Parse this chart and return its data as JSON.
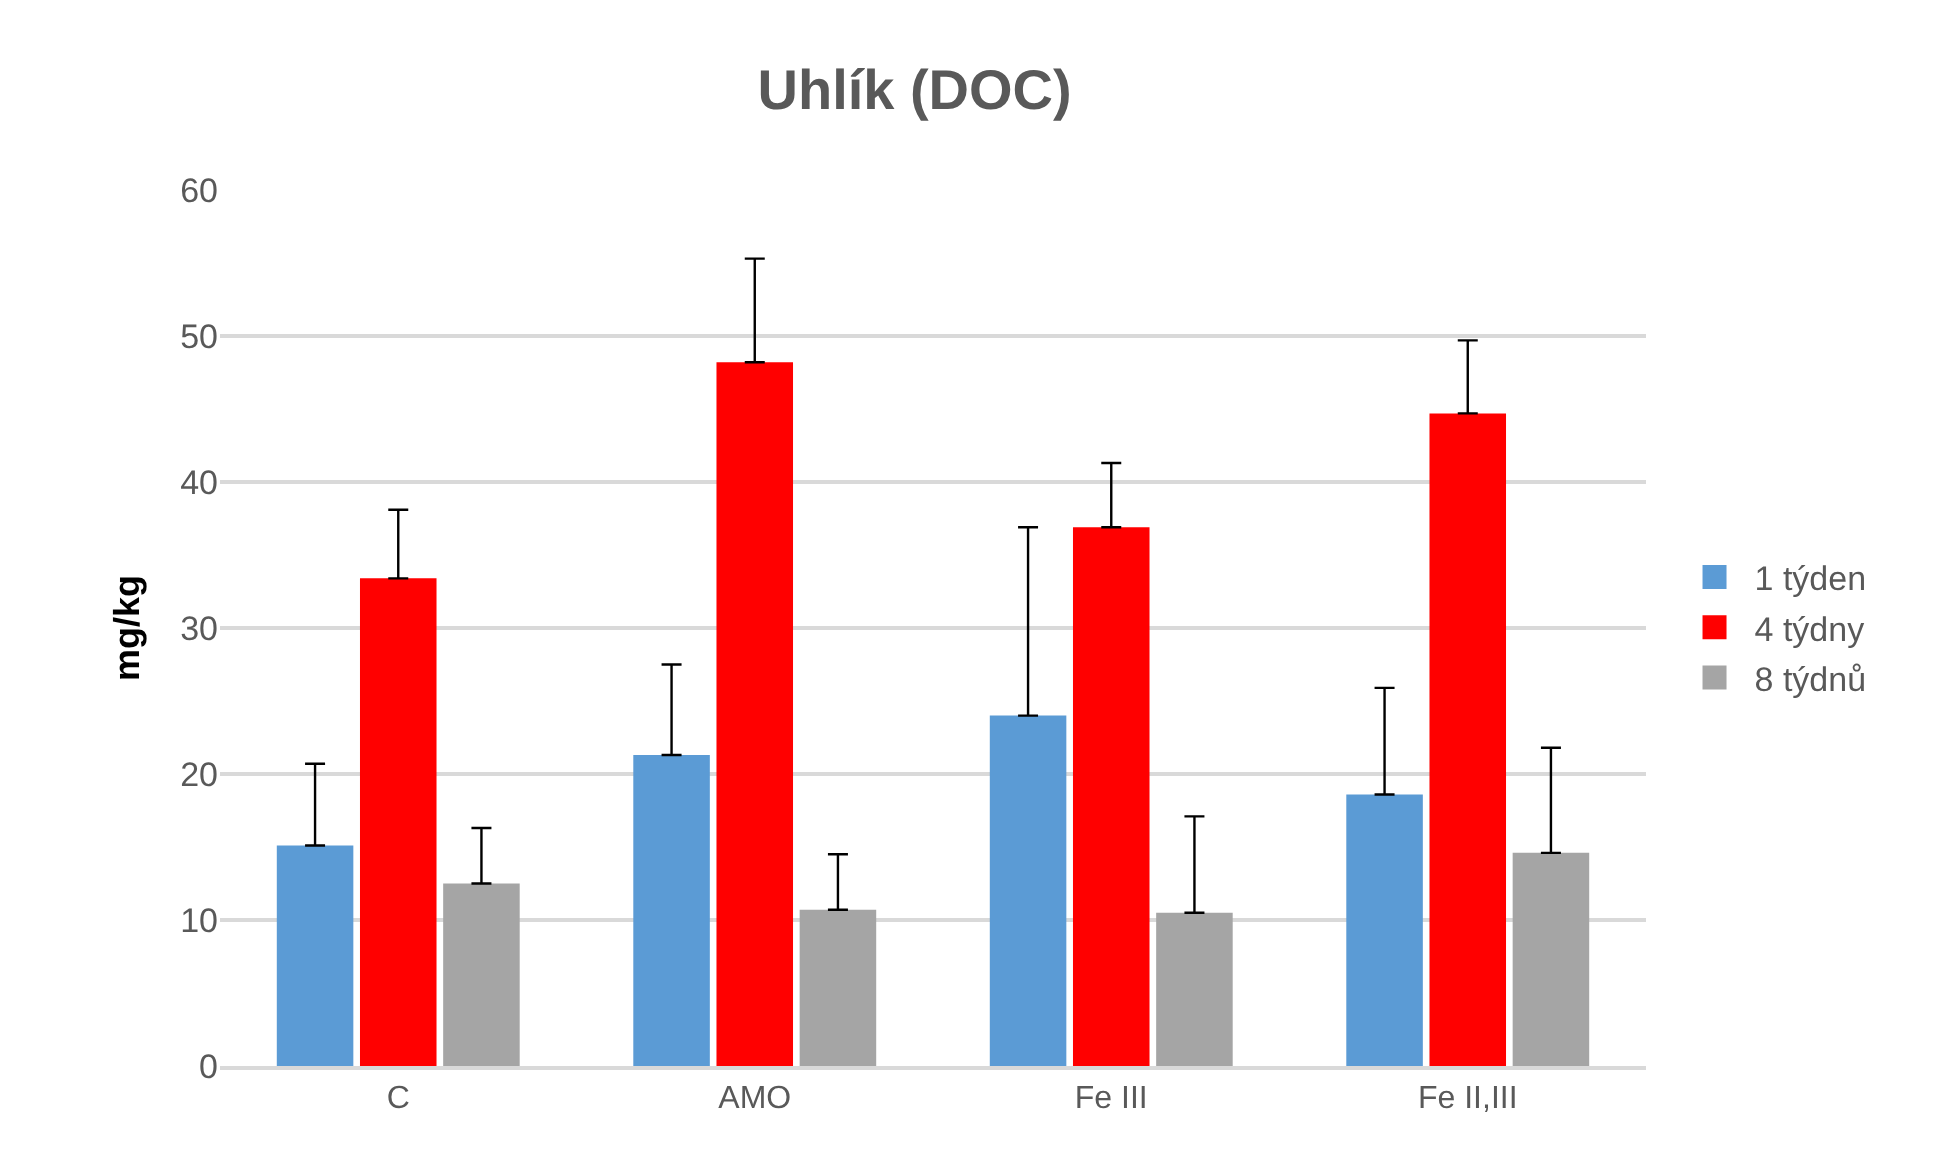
{
  "chart_data": {
    "type": "bar",
    "title": "Uhlík (DOC)",
    "ylabel": "mg/kg",
    "categories": [
      "C",
      "AMO",
      "Fe III",
      "Fe II,III"
    ],
    "series": [
      {
        "name": "1 týden",
        "color": "#5b9bd5",
        "values": [
          15.1,
          21.3,
          24.0,
          18.6
        ],
        "errors": [
          [
            15.1,
            20.7
          ],
          [
            21.3,
            27.5
          ],
          [
            24.0,
            36.9
          ],
          [
            18.6,
            25.9
          ]
        ]
      },
      {
        "name": "4 týdny",
        "color": "#ff0000",
        "values": [
          33.4,
          48.2,
          36.9,
          44.7
        ],
        "errors": [
          [
            33.4,
            38.1
          ],
          [
            48.2,
            55.3
          ],
          [
            36.9,
            41.3
          ],
          [
            44.7,
            49.7
          ]
        ]
      },
      {
        "name": "8 týdnů",
        "color": "#a5a5a5",
        "values": [
          12.5,
          10.7,
          10.5,
          14.6
        ],
        "errors": [
          [
            12.5,
            16.3
          ],
          [
            10.7,
            14.5
          ],
          [
            10.5,
            17.1
          ],
          [
            14.6,
            21.8
          ]
        ]
      }
    ],
    "ylim": [
      0,
      60
    ],
    "yticks": [
      0,
      10,
      20,
      30,
      40,
      50,
      60
    ],
    "grid": "y",
    "legend": "right"
  }
}
